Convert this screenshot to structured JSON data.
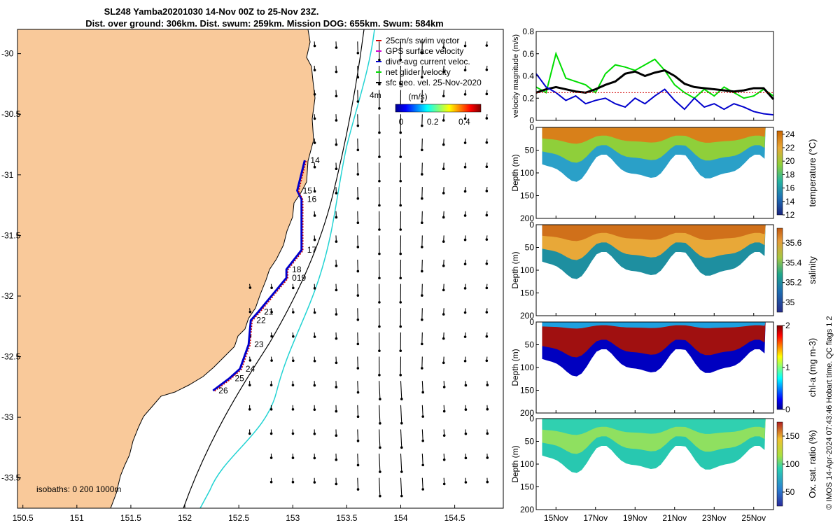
{
  "title": {
    "line1": "SL248 Yamba20201030 14-Nov 00Z to 25-Nov 23Z.",
    "line2": "Dist. over ground: 306km. Dist. swum: 259km. Mission DOG: 655km. Swum: 584km"
  },
  "map": {
    "lon_ticks": [
      "150.5",
      "151",
      "151.5",
      "152",
      "152.5",
      "153",
      "153.5",
      "154",
      "154.5"
    ],
    "lat_ticks": [
      "-30",
      "-30.5",
      "-31",
      "-31.5",
      "-32",
      "-32.5",
      "-33",
      "-33.5"
    ],
    "xlim": [
      150.45,
      154.95
    ],
    "ylim": [
      -33.75,
      -29.8
    ],
    "land_color": "#F9C99A",
    "isobath_label": "isobaths: 0   200   1000m",
    "legend": [
      {
        "label": "25cm/s swim vector",
        "color": "#d00000"
      },
      {
        "label": "GPS surface velocity",
        "color": "#d000d0"
      },
      {
        "label": "dive-avg current veloc.",
        "color": "#0000cc"
      },
      {
        "label": "net glider velocity",
        "color": "#00dd00"
      },
      {
        "label": "sfc geo. vel. 25-Nov-2020",
        "color": "#000000"
      }
    ],
    "colorbar_label": "(m/s)",
    "colorbar_ticks": [
      "0",
      "0.2",
      "0.4"
    ],
    "scale_label": "4m",
    "track_days": [
      {
        "label": "14",
        "lon": 153.15,
        "lat": -30.88
      },
      {
        "label": "15",
        "lon": 153.08,
        "lat": -31.13
      },
      {
        "label": "16",
        "lon": 153.12,
        "lat": -31.2
      },
      {
        "label": "17",
        "lon": 153.12,
        "lat": -31.62
      },
      {
        "label": "18",
        "lon": 152.98,
        "lat": -31.78
      },
      {
        "label": "019",
        "lon": 152.98,
        "lat": -31.85
      },
      {
        "label": "21",
        "lon": 152.72,
        "lat": -32.13
      },
      {
        "label": "22",
        "lon": 152.65,
        "lat": -32.2
      },
      {
        "label": "23",
        "lon": 152.63,
        "lat": -32.4
      },
      {
        "label": "24",
        "lon": 152.55,
        "lat": -32.6
      },
      {
        "label": "25",
        "lon": 152.45,
        "lat": -32.68
      },
      {
        "label": "26",
        "lon": 152.3,
        "lat": -32.78
      }
    ]
  },
  "chart_data": [
    {
      "type": "line",
      "ylabel": "velocity magnitude (m/s)",
      "ylim": [
        0,
        0.8
      ],
      "yticks": [
        "0",
        "0.2",
        "0.4",
        "0.6",
        "0.8"
      ],
      "x_days": [
        14,
        14.5,
        15,
        15.5,
        16,
        16.5,
        17,
        17.5,
        18,
        18.5,
        19,
        19.5,
        20,
        20.5,
        21,
        21.5,
        22,
        22.5,
        23,
        23.5,
        24,
        24.5,
        25,
        25.5,
        26
      ],
      "series": [
        {
          "name": "net glider velocity",
          "color": "#00dd00",
          "values": [
            0.3,
            0.25,
            0.6,
            0.38,
            0.35,
            0.32,
            0.25,
            0.42,
            0.5,
            0.48,
            0.45,
            0.5,
            0.55,
            0.45,
            0.32,
            0.25,
            0.2,
            0.28,
            0.22,
            0.3,
            0.25,
            0.2,
            0.22,
            0.28,
            0.22
          ]
        },
        {
          "name": "sfc geo. vel.",
          "color": "#000000",
          "values": [
            0.25,
            0.28,
            0.3,
            0.28,
            0.26,
            0.25,
            0.28,
            0.32,
            0.35,
            0.42,
            0.44,
            0.4,
            0.43,
            0.45,
            0.4,
            0.33,
            0.3,
            0.29,
            0.28,
            0.27,
            0.26,
            0.27,
            0.29,
            0.29,
            0.19
          ]
        },
        {
          "name": "dive-avg current veloc.",
          "color": "#0000cc",
          "values": [
            0.42,
            0.3,
            0.25,
            0.18,
            0.22,
            0.15,
            0.18,
            0.2,
            0.15,
            0.12,
            0.2,
            0.15,
            0.22,
            0.28,
            0.18,
            0.1,
            0.2,
            0.12,
            0.15,
            0.1,
            0.15,
            0.12,
            0.08,
            0.06,
            0.05
          ]
        },
        {
          "name": "25cm/s swim vector",
          "color": "#d00000",
          "values": [
            0.25,
            0.25,
            0.25,
            0.25,
            0.25,
            0.25,
            0.25,
            0.25,
            0.25,
            0.25,
            0.25,
            0.25,
            0.25,
            0.25,
            0.25,
            0.25,
            0.25,
            0.25,
            0.25,
            0.25,
            0.25,
            0.25,
            0.25,
            0.25,
            0.25
          ]
        }
      ]
    },
    {
      "type": "heatmap",
      "ylabel": "Depth (m)",
      "ylim": [
        0,
        200
      ],
      "yticks": [
        "0",
        "50",
        "100",
        "150",
        "200"
      ],
      "colorbar_label": "temperature (°C)",
      "colorbar_ticks": [
        "12",
        "14",
        "16",
        "18",
        "20",
        "22",
        "24"
      ],
      "clim": [
        12,
        24.5
      ]
    },
    {
      "type": "heatmap",
      "ylabel": "Depth (m)",
      "ylim": [
        0,
        200
      ],
      "yticks": [
        "0",
        "50",
        "100",
        "150",
        "200"
      ],
      "colorbar_label": "salinity",
      "colorbar_ticks": [
        "35",
        "35.2",
        "35.4",
        "35.6"
      ],
      "clim": [
        34.9,
        35.75
      ]
    },
    {
      "type": "heatmap",
      "ylabel": "Depth (m)",
      "ylim": [
        0,
        200
      ],
      "yticks": [
        "0",
        "50",
        "100",
        "150",
        "200"
      ],
      "colorbar_label": "chl-a (mg m-3)",
      "colorbar_ticks": [
        "0",
        "1",
        "2"
      ],
      "clim": [
        0,
        2
      ]
    },
    {
      "type": "heatmap",
      "ylabel": "Depth (m)",
      "ylim": [
        0,
        200
      ],
      "yticks": [
        "0",
        "50",
        "100",
        "150",
        "200"
      ],
      "colorbar_label": "Ox. sat. ratio (%)",
      "colorbar_ticks": [
        "50",
        "100",
        "150"
      ],
      "clim": [
        25,
        175
      ]
    }
  ],
  "time_axis": {
    "xlim": [
      14,
      26
    ],
    "ticks": [
      {
        "day": 15,
        "label": "15Nov"
      },
      {
        "day": 17,
        "label": "17Nov"
      },
      {
        "day": 19,
        "label": "19Nov"
      },
      {
        "day": 21,
        "label": "21Nov"
      },
      {
        "day": 23,
        "label": "23Nov"
      },
      {
        "day": 25,
        "label": "25Nov"
      }
    ]
  },
  "side_note": "© IMOS 14-Apr-2024 07:43:46 Hobart time. QC flags 1  2"
}
